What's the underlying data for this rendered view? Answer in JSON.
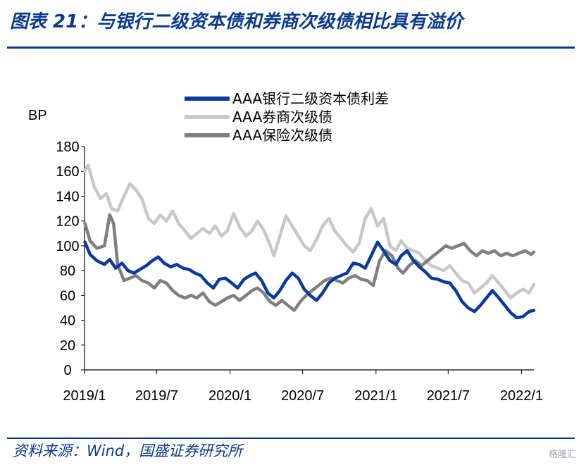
{
  "header": {
    "title": "图表 21：与银行二级资本债和券商次级债相比具有溢价"
  },
  "footer": {
    "source": "资料来源：Wind，国盛证券研究所",
    "watermark": "格隆汇"
  },
  "chart_data": {
    "type": "line",
    "ylabel": "BP",
    "ylim": [
      0,
      180
    ],
    "yticks": [
      0,
      20,
      40,
      60,
      80,
      100,
      120,
      140,
      160,
      180
    ],
    "xlim": [
      "2019-01",
      "2022-02"
    ],
    "xtick_labels": [
      "2019/1",
      "2019/7",
      "2020/1",
      "2020/7",
      "2021/1",
      "2021/7",
      "2022/1"
    ],
    "xtick_dates": [
      "2019-01",
      "2019-07",
      "2020-01",
      "2020-07",
      "2021-01",
      "2021-07",
      "2022-01"
    ],
    "grid": false,
    "legend_position": "top",
    "series": [
      {
        "name": "AAA银行二级资本债利差",
        "color": "#0b3a9c",
        "points": [
          [
            "2019-01-02",
            103
          ],
          [
            "2019-01-15",
            93
          ],
          [
            "2019-02-01",
            88
          ],
          [
            "2019-02-20",
            85
          ],
          [
            "2019-03-05",
            89
          ],
          [
            "2019-03-20",
            82
          ],
          [
            "2019-04-05",
            86
          ],
          [
            "2019-04-20",
            80
          ],
          [
            "2019-05-05",
            78
          ],
          [
            "2019-05-20",
            81
          ],
          [
            "2019-06-05",
            84
          ],
          [
            "2019-06-20",
            88
          ],
          [
            "2019-07-05",
            91
          ],
          [
            "2019-07-20",
            86
          ],
          [
            "2019-08-05",
            83
          ],
          [
            "2019-08-20",
            85
          ],
          [
            "2019-09-05",
            82
          ],
          [
            "2019-09-20",
            81
          ],
          [
            "2019-10-05",
            78
          ],
          [
            "2019-10-20",
            76
          ],
          [
            "2019-11-05",
            70
          ],
          [
            "2019-11-20",
            66
          ],
          [
            "2019-12-05",
            73
          ],
          [
            "2019-12-20",
            74
          ],
          [
            "2020-01-05",
            70
          ],
          [
            "2020-01-20",
            66
          ],
          [
            "2020-02-05",
            73
          ],
          [
            "2020-02-20",
            76
          ],
          [
            "2020-03-05",
            78
          ],
          [
            "2020-03-20",
            72
          ],
          [
            "2020-04-05",
            62
          ],
          [
            "2020-04-20",
            58
          ],
          [
            "2020-05-05",
            64
          ],
          [
            "2020-05-20",
            72
          ],
          [
            "2020-06-05",
            78
          ],
          [
            "2020-06-20",
            74
          ],
          [
            "2020-07-05",
            65
          ],
          [
            "2020-07-20",
            60
          ],
          [
            "2020-08-05",
            56
          ],
          [
            "2020-08-20",
            62
          ],
          [
            "2020-09-05",
            70
          ],
          [
            "2020-09-20",
            74
          ],
          [
            "2020-10-05",
            76
          ],
          [
            "2020-10-20",
            78
          ],
          [
            "2020-11-05",
            86
          ],
          [
            "2020-11-20",
            85
          ],
          [
            "2020-12-05",
            82
          ],
          [
            "2020-12-20",
            92
          ],
          [
            "2021-01-05",
            103
          ],
          [
            "2021-01-20",
            96
          ],
          [
            "2021-02-05",
            88
          ],
          [
            "2021-02-20",
            85
          ],
          [
            "2021-03-05",
            92
          ],
          [
            "2021-03-20",
            96
          ],
          [
            "2021-04-05",
            88
          ],
          [
            "2021-04-20",
            83
          ],
          [
            "2021-05-05",
            79
          ],
          [
            "2021-05-20",
            74
          ],
          [
            "2021-06-05",
            73
          ],
          [
            "2021-06-20",
            71
          ],
          [
            "2021-07-05",
            70
          ],
          [
            "2021-07-20",
            64
          ],
          [
            "2021-08-05",
            55
          ],
          [
            "2021-08-20",
            50
          ],
          [
            "2021-09-05",
            47
          ],
          [
            "2021-09-20",
            52
          ],
          [
            "2021-10-05",
            58
          ],
          [
            "2021-10-20",
            64
          ],
          [
            "2021-11-05",
            58
          ],
          [
            "2021-11-20",
            52
          ],
          [
            "2021-12-05",
            46
          ],
          [
            "2021-12-20",
            42
          ],
          [
            "2022-01-05",
            43
          ],
          [
            "2022-01-20",
            47
          ],
          [
            "2022-02-01",
            48
          ]
        ]
      },
      {
        "name": "AAA券商次级债",
        "color": "#c8c8c8",
        "points": [
          [
            "2019-01-02",
            160
          ],
          [
            "2019-01-10",
            165
          ],
          [
            "2019-01-25",
            148
          ],
          [
            "2019-02-10",
            138
          ],
          [
            "2019-02-25",
            142
          ],
          [
            "2019-03-10",
            130
          ],
          [
            "2019-03-25",
            128
          ],
          [
            "2019-04-10",
            140
          ],
          [
            "2019-04-25",
            150
          ],
          [
            "2019-05-10",
            145
          ],
          [
            "2019-05-25",
            138
          ],
          [
            "2019-06-10",
            122
          ],
          [
            "2019-06-25",
            118
          ],
          [
            "2019-07-10",
            125
          ],
          [
            "2019-07-25",
            120
          ],
          [
            "2019-08-10",
            128
          ],
          [
            "2019-08-25",
            118
          ],
          [
            "2019-09-10",
            112
          ],
          [
            "2019-09-25",
            106
          ],
          [
            "2019-10-10",
            110
          ],
          [
            "2019-10-25",
            114
          ],
          [
            "2019-11-10",
            110
          ],
          [
            "2019-11-25",
            116
          ],
          [
            "2019-12-10",
            108
          ],
          [
            "2019-12-25",
            112
          ],
          [
            "2020-01-10",
            126
          ],
          [
            "2020-01-25",
            115
          ],
          [
            "2020-02-10",
            108
          ],
          [
            "2020-02-25",
            112
          ],
          [
            "2020-03-10",
            120
          ],
          [
            "2020-03-25",
            113
          ],
          [
            "2020-04-10",
            101
          ],
          [
            "2020-04-20",
            92
          ],
          [
            "2020-05-05",
            108
          ],
          [
            "2020-05-20",
            124
          ],
          [
            "2020-06-05",
            116
          ],
          [
            "2020-06-20",
            108
          ],
          [
            "2020-07-05",
            100
          ],
          [
            "2020-07-20",
            96
          ],
          [
            "2020-08-05",
            105
          ],
          [
            "2020-08-20",
            116
          ],
          [
            "2020-09-05",
            122
          ],
          [
            "2020-09-20",
            112
          ],
          [
            "2020-10-05",
            106
          ],
          [
            "2020-10-20",
            100
          ],
          [
            "2020-11-05",
            95
          ],
          [
            "2020-11-20",
            102
          ],
          [
            "2020-12-05",
            122
          ],
          [
            "2020-12-20",
            130
          ],
          [
            "2021-01-05",
            116
          ],
          [
            "2021-01-20",
            122
          ],
          [
            "2021-02-05",
            100
          ],
          [
            "2021-02-20",
            96
          ],
          [
            "2021-03-05",
            104
          ],
          [
            "2021-03-20",
            98
          ],
          [
            "2021-04-05",
            96
          ],
          [
            "2021-04-20",
            94
          ],
          [
            "2021-05-05",
            88
          ],
          [
            "2021-05-20",
            84
          ],
          [
            "2021-06-05",
            82
          ],
          [
            "2021-06-20",
            80
          ],
          [
            "2021-07-05",
            84
          ],
          [
            "2021-07-20",
            78
          ],
          [
            "2021-08-05",
            72
          ],
          [
            "2021-08-20",
            70
          ],
          [
            "2021-09-05",
            62
          ],
          [
            "2021-09-20",
            66
          ],
          [
            "2021-10-05",
            70
          ],
          [
            "2021-10-20",
            76
          ],
          [
            "2021-11-05",
            70
          ],
          [
            "2021-11-20",
            64
          ],
          [
            "2021-12-05",
            58
          ],
          [
            "2021-12-20",
            62
          ],
          [
            "2022-01-05",
            65
          ],
          [
            "2022-01-20",
            62
          ],
          [
            "2022-02-01",
            69
          ]
        ]
      },
      {
        "name": "AAA保险次级债",
        "color": "#7f7f7f",
        "points": [
          [
            "2019-01-02",
            118
          ],
          [
            "2019-01-15",
            104
          ],
          [
            "2019-02-01",
            98
          ],
          [
            "2019-02-20",
            100
          ],
          [
            "2019-03-05",
            125
          ],
          [
            "2019-03-15",
            118
          ],
          [
            "2019-03-25",
            85
          ],
          [
            "2019-04-10",
            72
          ],
          [
            "2019-04-25",
            74
          ],
          [
            "2019-05-10",
            76
          ],
          [
            "2019-05-25",
            72
          ],
          [
            "2019-06-10",
            70
          ],
          [
            "2019-06-25",
            66
          ],
          [
            "2019-07-10",
            72
          ],
          [
            "2019-07-25",
            70
          ],
          [
            "2019-08-10",
            64
          ],
          [
            "2019-08-25",
            60
          ],
          [
            "2019-09-10",
            58
          ],
          [
            "2019-09-25",
            60
          ],
          [
            "2019-10-10",
            58
          ],
          [
            "2019-10-25",
            62
          ],
          [
            "2019-11-10",
            55
          ],
          [
            "2019-11-25",
            52
          ],
          [
            "2019-12-10",
            55
          ],
          [
            "2019-12-25",
            58
          ],
          [
            "2020-01-10",
            60
          ],
          [
            "2020-01-25",
            56
          ],
          [
            "2020-02-10",
            60
          ],
          [
            "2020-02-25",
            64
          ],
          [
            "2020-03-10",
            66
          ],
          [
            "2020-03-25",
            62
          ],
          [
            "2020-04-10",
            55
          ],
          [
            "2020-04-25",
            52
          ],
          [
            "2020-05-10",
            56
          ],
          [
            "2020-05-25",
            52
          ],
          [
            "2020-06-10",
            48
          ],
          [
            "2020-06-25",
            55
          ],
          [
            "2020-07-10",
            60
          ],
          [
            "2020-07-25",
            64
          ],
          [
            "2020-08-10",
            68
          ],
          [
            "2020-08-25",
            72
          ],
          [
            "2020-09-10",
            74
          ],
          [
            "2020-09-25",
            72
          ],
          [
            "2020-10-10",
            70
          ],
          [
            "2020-10-25",
            74
          ],
          [
            "2020-11-10",
            76
          ],
          [
            "2020-11-25",
            73
          ],
          [
            "2020-12-10",
            72
          ],
          [
            "2020-12-25",
            68
          ],
          [
            "2021-01-10",
            88
          ],
          [
            "2021-01-25",
            96
          ],
          [
            "2021-02-10",
            92
          ],
          [
            "2021-02-25",
            82
          ],
          [
            "2021-03-10",
            78
          ],
          [
            "2021-03-25",
            84
          ],
          [
            "2021-04-10",
            88
          ],
          [
            "2021-04-25",
            84
          ],
          [
            "2021-05-10",
            88
          ],
          [
            "2021-05-25",
            92
          ],
          [
            "2021-06-10",
            96
          ],
          [
            "2021-06-25",
            100
          ],
          [
            "2021-07-10",
            98
          ],
          [
            "2021-07-25",
            100
          ],
          [
            "2021-08-10",
            102
          ],
          [
            "2021-08-25",
            96
          ],
          [
            "2021-09-10",
            92
          ],
          [
            "2021-09-25",
            96
          ],
          [
            "2021-10-10",
            94
          ],
          [
            "2021-10-25",
            96
          ],
          [
            "2021-11-10",
            92
          ],
          [
            "2021-11-25",
            94
          ],
          [
            "2021-12-10",
            92
          ],
          [
            "2021-12-25",
            94
          ],
          [
            "2022-01-10",
            96
          ],
          [
            "2022-01-25",
            93
          ],
          [
            "2022-02-01",
            95
          ]
        ]
      }
    ]
  }
}
